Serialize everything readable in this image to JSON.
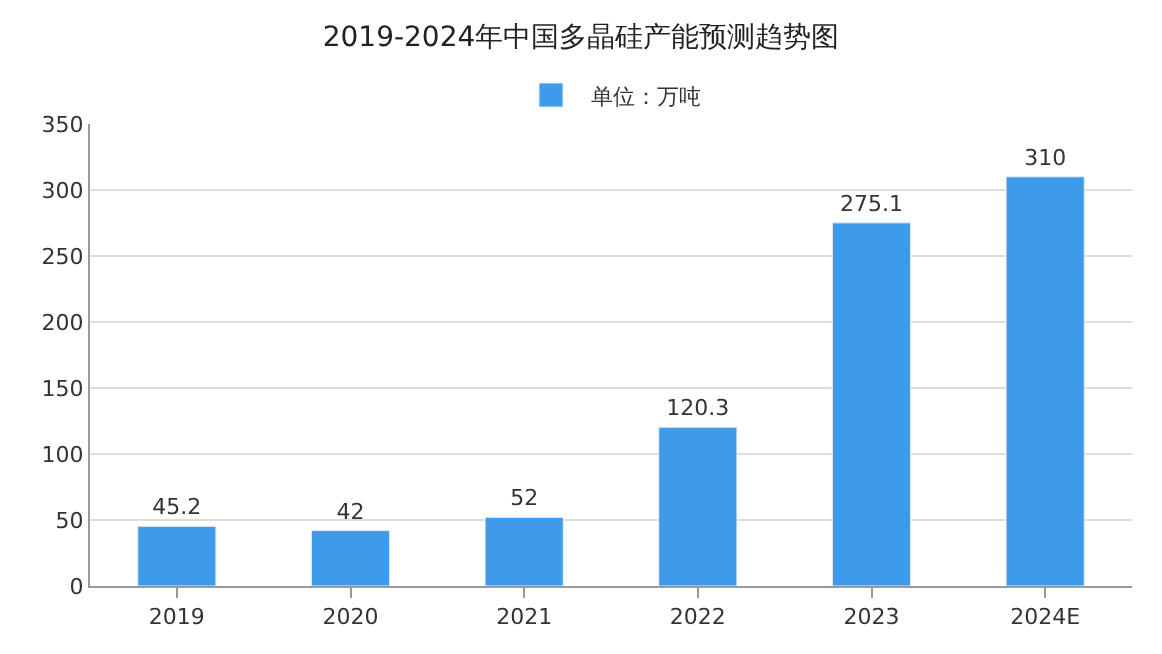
{
  "chart_data": {
    "type": "bar",
    "title": "2019-2024年中国多晶硅产能预测趋势图",
    "categories": [
      "2019",
      "2020",
      "2021",
      "2022",
      "2023",
      "2024E"
    ],
    "series": [
      {
        "name": "单位：万吨",
        "color": "#3d9be9",
        "values": [
          45.2,
          42,
          52,
          120.3,
          275.1,
          310
        ]
      }
    ],
    "ylim": [
      0,
      350
    ],
    "yticks": [
      0,
      50,
      100,
      150,
      200,
      250,
      300,
      350
    ],
    "grid": "y",
    "legend": "top",
    "data_labels": true
  }
}
